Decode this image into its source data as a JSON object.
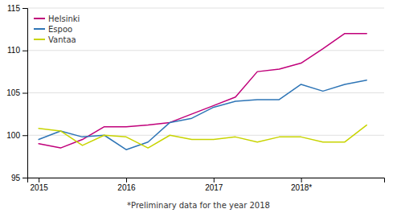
{
  "chart_data": {
    "type": "line",
    "x": [
      2015.0,
      2015.25,
      2015.5,
      2015.75,
      2016.0,
      2016.25,
      2016.5,
      2016.75,
      2017.0,
      2017.25,
      2017.5,
      2017.75,
      2018.0,
      2018.25,
      2018.5,
      2018.75
    ],
    "series": [
      {
        "name": "Helsinki",
        "color": "#c0007a",
        "values": [
          99.0,
          98.5,
          99.5,
          101.0,
          101.0,
          101.2,
          101.5,
          102.5,
          103.5,
          104.5,
          107.5,
          107.8,
          108.5,
          110.2,
          112.0,
          112.0
        ]
      },
      {
        "name": "Espoo",
        "color": "#2e75b6",
        "values": [
          99.5,
          100.5,
          99.8,
          100.0,
          98.3,
          99.2,
          101.5,
          102.0,
          103.3,
          104.0,
          104.2,
          104.2,
          106.0,
          105.2,
          106.0,
          106.5
        ]
      },
      {
        "name": "Vantaa",
        "color": "#c8d400",
        "values": [
          100.8,
          100.5,
          98.8,
          100.0,
          99.8,
          98.5,
          100.0,
          99.5,
          99.5,
          99.8,
          99.2,
          99.8,
          99.8,
          99.2,
          99.2,
          101.2
        ]
      }
    ],
    "xlim": [
      2014.87,
      2018.95
    ],
    "xticks": [
      2015,
      2016,
      2017,
      {
        "value": 2018,
        "label": "2018*"
      }
    ],
    "ylim": [
      95,
      115
    ],
    "yticks": [
      95,
      100,
      105,
      110,
      115
    ],
    "grid": true,
    "legend": "top-left",
    "annotations": [
      "*Preliminary data for the year 2018"
    ]
  }
}
